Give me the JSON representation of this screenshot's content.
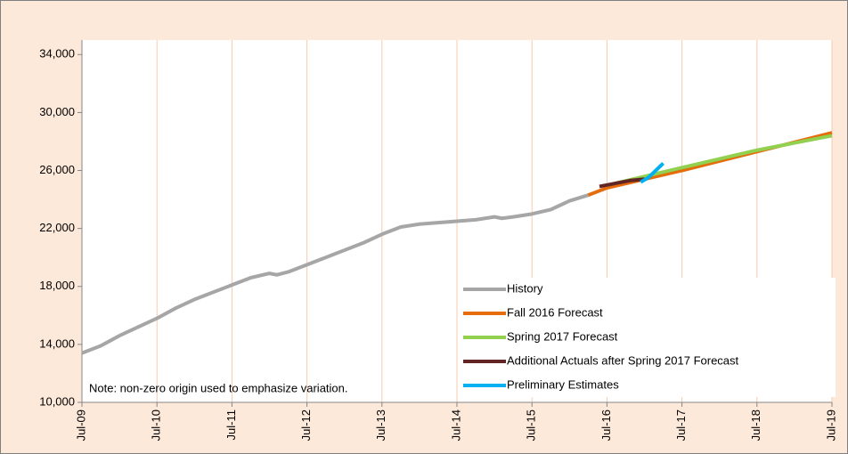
{
  "chart_data": {
    "type": "line",
    "annotation": "Note: non-zero origin used to emphasize variation.",
    "xlim": [
      2009.5,
      2019.5
    ],
    "xticks": [
      {
        "value": 2009.5,
        "label": "Jul-09"
      },
      {
        "value": 2010.5,
        "label": "Jul-10"
      },
      {
        "value": 2011.5,
        "label": "Jul-11"
      },
      {
        "value": 2012.5,
        "label": "Jul-12"
      },
      {
        "value": 2013.5,
        "label": "Jul-13"
      },
      {
        "value": 2014.5,
        "label": "Jul-14"
      },
      {
        "value": 2015.5,
        "label": "Jul-15"
      },
      {
        "value": 2016.5,
        "label": "Jul-16"
      },
      {
        "value": 2017.5,
        "label": "Jul-17"
      },
      {
        "value": 2018.5,
        "label": "Jul-18"
      },
      {
        "value": 2019.5,
        "label": "Jul-19"
      }
    ],
    "ylim": [
      10000,
      35000
    ],
    "yticks": [
      {
        "value": 10000,
        "label": "10,000"
      },
      {
        "value": 14000,
        "label": "14,000"
      },
      {
        "value": 18000,
        "label": "18,000"
      },
      {
        "value": 22000,
        "label": "22,000"
      },
      {
        "value": 26000,
        "label": "26,000"
      },
      {
        "value": 30000,
        "label": "30,000"
      },
      {
        "value": 34000,
        "label": "34,000"
      }
    ],
    "grid": "x",
    "legend": "lower right",
    "series": [
      {
        "name": "History",
        "color": "#a6a6a6",
        "x": [
          2009.5,
          2009.75,
          2010.0,
          2010.25,
          2010.5,
          2010.75,
          2011.0,
          2011.25,
          2011.5,
          2011.75,
          2012.0,
          2012.1,
          2012.25,
          2012.5,
          2012.75,
          2013.0,
          2013.25,
          2013.5,
          2013.75,
          2014.0,
          2014.25,
          2014.5,
          2014.75,
          2015.0,
          2015.1,
          2015.25,
          2015.5,
          2015.75,
          2016.0,
          2016.25
        ],
        "values": [
          13400,
          13900,
          14600,
          15200,
          15800,
          16500,
          17100,
          17600,
          18100,
          18600,
          18900,
          18800,
          19000,
          19500,
          20000,
          20500,
          21000,
          21600,
          22100,
          22300,
          22400,
          22500,
          22600,
          22800,
          22700,
          22800,
          23000,
          23300,
          23900,
          24300
        ]
      },
      {
        "name": "Fall 2016 Forecast",
        "color": "#e46c0a",
        "x": [
          2016.25,
          2016.5,
          2017.5,
          2018.5,
          2019.5
        ],
        "values": [
          24300,
          24800,
          26000,
          27300,
          28600
        ]
      },
      {
        "name": "Spring 2017 Forecast",
        "color": "#92d050",
        "x": [
          2016.6,
          2017.5,
          2018.5,
          2019.5
        ],
        "values": [
          25100,
          26200,
          27400,
          28400
        ]
      },
      {
        "name": "Additional Actuals after Spring 2017 Forecast",
        "color": "#632523",
        "x": [
          2016.4,
          2016.6,
          2016.8,
          2017.0
        ],
        "values": [
          24900,
          25100,
          25300,
          25400
        ]
      },
      {
        "name": "Preliminary Estimates",
        "color": "#00b0f0",
        "x": [
          2016.95,
          2017.05,
          2017.15,
          2017.25
        ],
        "values": [
          25200,
          25500,
          26000,
          26500
        ]
      }
    ]
  }
}
